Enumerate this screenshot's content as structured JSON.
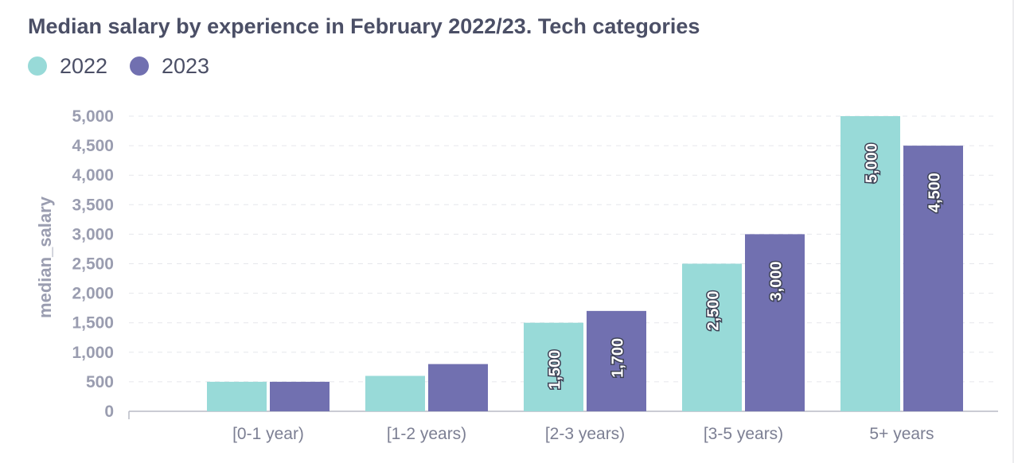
{
  "title": "Median salary by experience in February 2022/23. Tech categories",
  "legend": [
    {
      "label": "2022",
      "color": "#98dad8"
    },
    {
      "label": "2023",
      "color": "#7170b0"
    }
  ],
  "chart_data": {
    "type": "bar",
    "title": "Median salary by experience in February 2022/23. Tech categories",
    "xlabel": "",
    "ylabel": "median_salary",
    "categories": [
      "[0-1 year)",
      "[1-2 years)",
      "[2-3 years)",
      "[3-5 years)",
      "5+ years"
    ],
    "series": [
      {
        "name": "2022",
        "color": "#98dad8",
        "values": [
          500,
          600,
          1500,
          2500,
          5000
        ],
        "labels": [
          "",
          "",
          "1,500",
          "2,500",
          "5,000"
        ]
      },
      {
        "name": "2023",
        "color": "#7170b0",
        "values": [
          500,
          800,
          1700,
          3000,
          4500
        ],
        "labels": [
          "",
          "",
          "1,700",
          "3,000",
          "4,500"
        ]
      }
    ],
    "ylim": [
      0,
      5000
    ],
    "yticks": [
      0,
      500,
      1000,
      1500,
      2000,
      2500,
      3000,
      3500,
      4000,
      4500,
      5000
    ],
    "ytick_labels": [
      "0",
      "500",
      "1,000",
      "1,500",
      "2,000",
      "2,500",
      "3,000",
      "3,500",
      "4,000",
      "4,500",
      "5,000"
    ],
    "grid": true,
    "legend_position": "top-left"
  }
}
